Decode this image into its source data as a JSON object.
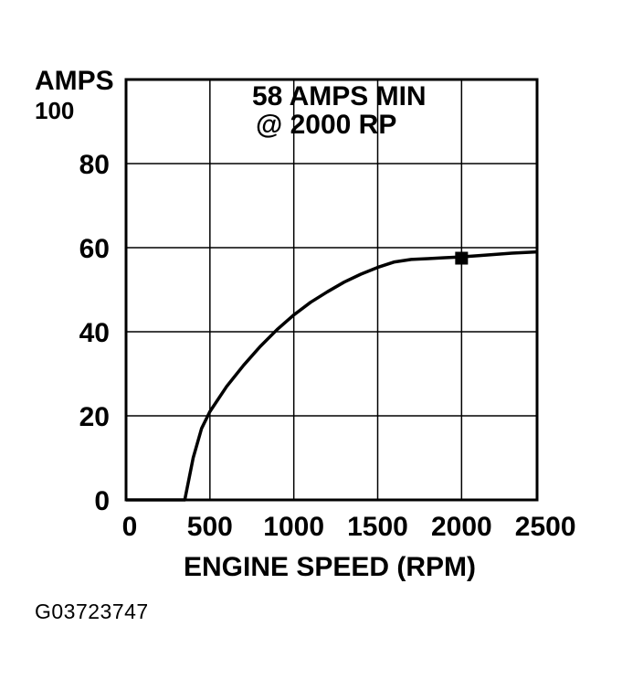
{
  "figure_id": "G03723747",
  "chart_data": {
    "type": "line",
    "ylabel": "AMPS",
    "xlabel": "ENGINE SPEED (RPM)",
    "annotation_line1": "58 AMPS MIN",
    "annotation_line2": "@ 2000 RP",
    "xlim": [
      0,
      2450
    ],
    "ylim": [
      0,
      100
    ],
    "x_ticks": [
      0,
      500,
      1000,
      1500,
      2000,
      2500
    ],
    "y_ticks": [
      0,
      20,
      40,
      60,
      80,
      100
    ],
    "grid": true,
    "series": [
      {
        "x": [
          0,
          350,
          400,
          450,
          500,
          600,
          700,
          800,
          900,
          1000,
          1100,
          1200,
          1300,
          1400,
          1500,
          1600,
          1700,
          1800,
          1900,
          2000,
          2100,
          2200,
          2300,
          2450
        ],
        "y": [
          0,
          0,
          10,
          17,
          21,
          27,
          32,
          36.5,
          40.5,
          44,
          47,
          49.5,
          51.8,
          53.7,
          55.3,
          56.6,
          57.2,
          57.4,
          57.6,
          57.8,
          58.1,
          58.4,
          58.7,
          59
        ]
      }
    ],
    "marker": {
      "x": 2000,
      "y": 57.5
    }
  }
}
